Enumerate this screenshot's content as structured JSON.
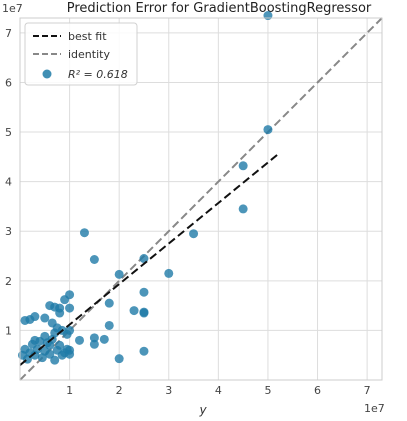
{
  "chart_data": {
    "type": "scatter",
    "title": "Prediction Error for GradientBoostingRegressor",
    "xlabel": "y",
    "ylabel": "",
    "x_multiplier_label": "1e7",
    "y_multiplier_label": "1e7",
    "xlim": [
      0,
      7.3
    ],
    "ylim": [
      0,
      7.3
    ],
    "x_ticks": [
      1,
      2,
      3,
      4,
      5,
      6,
      7
    ],
    "y_ticks": [
      1,
      2,
      3,
      4,
      5,
      6,
      7
    ],
    "x_tick_labels": [
      "1",
      "2",
      "3",
      "4",
      "5",
      "6",
      "7"
    ],
    "y_tick_labels": [
      "1",
      "2",
      "3",
      "4",
      "5",
      "6",
      "7"
    ],
    "grid": true,
    "legend_position": "top-left",
    "legend": {
      "best_fit": "best fit",
      "identity": "identity",
      "r2": "R² = 0.618"
    },
    "colors": {
      "points": "#1f7ba7",
      "best_fit": "#111111",
      "identity": "#888888",
      "grid": "#dddddd",
      "frame": "#cccccc"
    },
    "best_fit_line": {
      "x": [
        0,
        5.2
      ],
      "y": [
        0.3,
        4.55
      ]
    },
    "identity_line": {
      "x": [
        0,
        7.3
      ],
      "y": [
        0,
        7.3
      ]
    },
    "points": [
      [
        0.05,
        0.5
      ],
      [
        0.1,
        0.62
      ],
      [
        0.15,
        0.42
      ],
      [
        0.2,
        0.55
      ],
      [
        0.25,
        0.72
      ],
      [
        0.3,
        0.5
      ],
      [
        0.35,
        0.62
      ],
      [
        0.4,
        0.78
      ],
      [
        0.45,
        0.45
      ],
      [
        0.5,
        0.58
      ],
      [
        0.55,
        0.75
      ],
      [
        0.6,
        0.52
      ],
      [
        0.65,
        0.82
      ],
      [
        0.7,
        0.4
      ],
      [
        0.75,
        0.6
      ],
      [
        0.8,
        0.7
      ],
      [
        0.85,
        0.5
      ],
      [
        0.9,
        0.55
      ],
      [
        0.95,
        0.62
      ],
      [
        1.0,
        0.52
      ],
      [
        0.3,
        0.8
      ],
      [
        0.5,
        0.88
      ],
      [
        0.7,
        0.95
      ],
      [
        0.6,
        0.7
      ],
      [
        0.1,
        1.2
      ],
      [
        0.2,
        1.22
      ],
      [
        0.3,
        1.28
      ],
      [
        0.5,
        1.25
      ],
      [
        0.65,
        1.15
      ],
      [
        0.75,
        1.05
      ],
      [
        0.8,
        1.35
      ],
      [
        0.85,
        1.0
      ],
      [
        0.95,
        0.92
      ],
      [
        0.6,
        1.5
      ],
      [
        0.7,
        1.47
      ],
      [
        0.8,
        1.45
      ],
      [
        0.9,
        1.62
      ],
      [
        1.0,
        1.72
      ],
      [
        1.0,
        1.45
      ],
      [
        1.0,
        1.0
      ],
      [
        1.0,
        0.6
      ],
      [
        1.2,
        0.8
      ],
      [
        1.3,
        2.97
      ],
      [
        1.5,
        2.43
      ],
      [
        1.5,
        0.85
      ],
      [
        1.5,
        0.72
      ],
      [
        1.7,
        0.82
      ],
      [
        1.8,
        1.1
      ],
      [
        1.8,
        1.55
      ],
      [
        2.0,
        2.13
      ],
      [
        2.0,
        0.43
      ],
      [
        2.3,
        1.4
      ],
      [
        2.5,
        2.45
      ],
      [
        2.5,
        1.77
      ],
      [
        2.5,
        1.37
      ],
      [
        2.5,
        1.35
      ],
      [
        2.5,
        0.58
      ],
      [
        3.0,
        2.15
      ],
      [
        3.5,
        2.95
      ],
      [
        4.5,
        4.32
      ],
      [
        4.5,
        3.45
      ],
      [
        5.0,
        5.05
      ],
      [
        5.0,
        7.35
      ]
    ]
  }
}
